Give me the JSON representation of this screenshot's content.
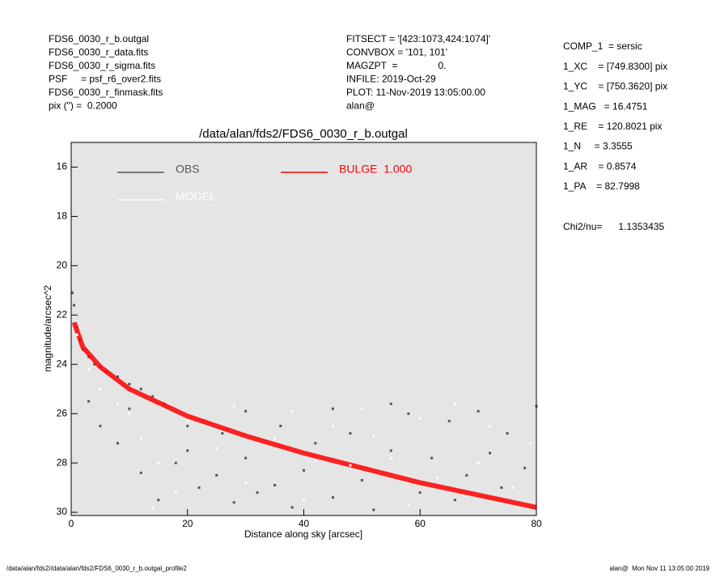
{
  "header": {
    "left": [
      "FDS6_0030_r_b.outgal",
      "FDS6_0030_r_data.fits",
      "FDS6_0030_r_sigma.fits",
      "PSF     = psf_r6_over2.fits",
      "FDS6_0030_r_finmask.fits",
      "pix (\") =  0.2000"
    ],
    "middle": [
      "FITSECT = '[423:1073,424:1074]'",
      "CONVBOX = '101, 101'",
      "MAGZPT  =               0.",
      "INFILE: 2019-Oct-29",
      "PLOT: 11-Nov-2019 13:05:00.00",
      "alan@"
    ],
    "right": [
      "COMP_1  = sersic",
      "1_XC    = [749.8300] pix",
      "1_YC    = [750.3620] pix",
      "1_MAG   = 16.4751",
      "1_RE    = 120.8021 pix",
      "1_N     = 3.3555",
      "1_AR    = 0.8574",
      "1_PA    = 82.7998"
    ],
    "chi2": "Chi2/nu=      1.1353435"
  },
  "footer": {
    "left": "/data/alan/fds2//data/alan/fds2/FDS6_0030_r_b.outgal_profile2",
    "right": "alan@  Mon Nov 11 13:05:00 2019"
  },
  "chart_data": {
    "type": "scatter",
    "title": "/data/alan/fds2/FDS6_0030_r_b.outgal",
    "xlabel": "Distance along sky [arcsec]",
    "ylabel": "magnitude/arcsec^2",
    "xlim": [
      0,
      80
    ],
    "xticks": [
      0,
      20,
      40,
      60,
      80
    ],
    "ylim": [
      30.13,
      15
    ],
    "yticks": [
      16,
      18,
      20,
      22,
      24,
      26,
      28,
      30
    ],
    "background": "#e5e5e5",
    "series": [
      {
        "name": "OBS",
        "color": "#555555",
        "type": "scatter",
        "x": [
          0.2,
          0.5,
          1,
          1.5,
          2,
          3,
          4,
          5,
          6,
          8,
          10,
          12,
          14,
          16,
          3,
          5,
          8,
          12,
          15,
          18,
          20,
          22,
          25,
          26,
          28,
          30,
          32,
          35,
          36,
          38,
          40,
          42,
          45,
          48,
          50,
          52,
          55,
          58,
          60,
          62,
          65,
          68,
          70,
          72,
          75,
          78,
          80,
          30,
          45,
          55,
          20,
          10,
          66,
          74
        ],
        "values": [
          21.1,
          21.6,
          22.5,
          23.0,
          23.4,
          23.7,
          24.0,
          24.1,
          24.3,
          24.5,
          24.8,
          25.0,
          25.3,
          25.6,
          25.5,
          26.5,
          27.2,
          28.4,
          29.5,
          28.0,
          27.5,
          29.0,
          28.5,
          26.8,
          29.6,
          27.8,
          29.2,
          28.9,
          26.5,
          29.8,
          28.3,
          27.2,
          29.4,
          26.8,
          28.7,
          29.9,
          27.5,
          26.0,
          29.2,
          27.8,
          26.3,
          28.5,
          25.9,
          27.6,
          26.8,
          28.2,
          25.7,
          25.9,
          25.8,
          25.6,
          26.5,
          25.8,
          29.5,
          29.0
        ]
      },
      {
        "name": "BULGE  1.000",
        "color": "#ff0000",
        "type": "line",
        "x": [
          0.5,
          2,
          5,
          10,
          20,
          30,
          40,
          50,
          60,
          70,
          80
        ],
        "values": [
          22.3,
          23.3,
          24.1,
          25.0,
          26.1,
          26.9,
          27.6,
          28.2,
          28.8,
          29.3,
          29.8
        ]
      },
      {
        "name": "MODEL",
        "color": "#ffffff",
        "type": "scatter",
        "x": [
          1,
          3,
          5,
          8,
          10,
          12,
          15,
          18,
          20,
          25,
          28,
          30,
          35,
          38,
          40,
          45,
          48,
          50,
          55,
          58,
          60,
          63,
          66,
          70,
          72,
          76,
          79,
          14,
          42,
          52
        ],
        "values": [
          22.8,
          24.2,
          25.0,
          25.6,
          26.0,
          27.0,
          28.0,
          29.2,
          26.3,
          27.4,
          25.7,
          28.8,
          27.0,
          25.9,
          29.5,
          26.5,
          28.1,
          25.8,
          27.8,
          29.7,
          26.2,
          28.6,
          25.6,
          28.0,
          26.5,
          29.0,
          27.2,
          29.8,
          27.9,
          26.9
        ]
      }
    ]
  }
}
